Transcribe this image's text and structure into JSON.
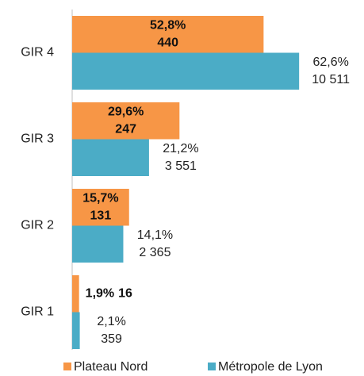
{
  "chart_data": {
    "type": "bar",
    "orientation": "horizontal",
    "categories": [
      "GIR 4",
      "GIR 3",
      "GIR 2",
      "GIR 1"
    ],
    "xlim": [
      0,
      70
    ],
    "legend": "bottom",
    "series": [
      {
        "name": "Plateau Nord",
        "color": "#f79646",
        "values": [
          52.8,
          29.6,
          15.7,
          1.9
        ],
        "value_labels": [
          "52,8%",
          "29,6%",
          "15,7%",
          "1,9%"
        ],
        "count_labels": [
          "440",
          "247",
          "131",
          "16"
        ]
      },
      {
        "name": "Métropole de Lyon",
        "color": "#4bacc6",
        "values": [
          62.6,
          21.2,
          14.1,
          2.1
        ],
        "value_labels": [
          "62,6%",
          "21,2%",
          "14,1%",
          "2,1%"
        ],
        "count_labels": [
          "10 511",
          "3 551",
          "2 365",
          "359"
        ]
      }
    ]
  }
}
